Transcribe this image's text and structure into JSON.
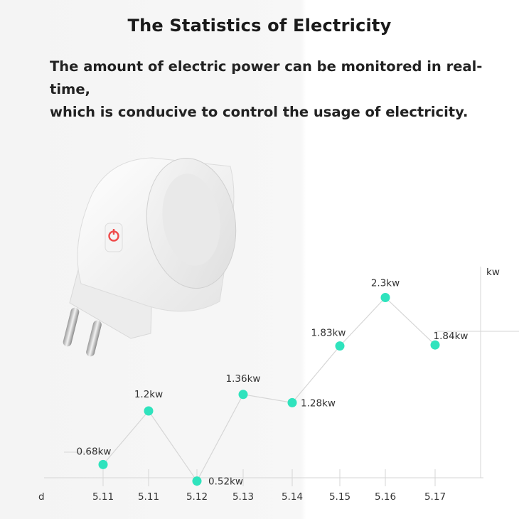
{
  "header": {
    "title": "The Statistics of Electricity",
    "subtitle_line1": "The amount of electric power can be monitored in real-time,",
    "subtitle_line2": "which is conducive to control the usage of electricity."
  },
  "colors": {
    "point": "#2fe3bd",
    "line": "#d6d6d6",
    "power_button": "#ef4b4b"
  },
  "chart_data": {
    "type": "line",
    "x": [
      "5.11",
      "5.11",
      "5.12",
      "5.13",
      "5.14",
      "5.15",
      "5.16",
      "5.17"
    ],
    "values": [
      0.68,
      1.2,
      0.52,
      1.36,
      1.28,
      1.83,
      2.3,
      1.84
    ],
    "data_labels": [
      "0.68kw",
      "1.2kw",
      "0.52kw",
      "1.36kw",
      "1.28kw",
      "1.83kw",
      "2.3kw",
      "1.84kw"
    ],
    "xlabel": "d",
    "ylabel": "kw",
    "grid": false
  }
}
